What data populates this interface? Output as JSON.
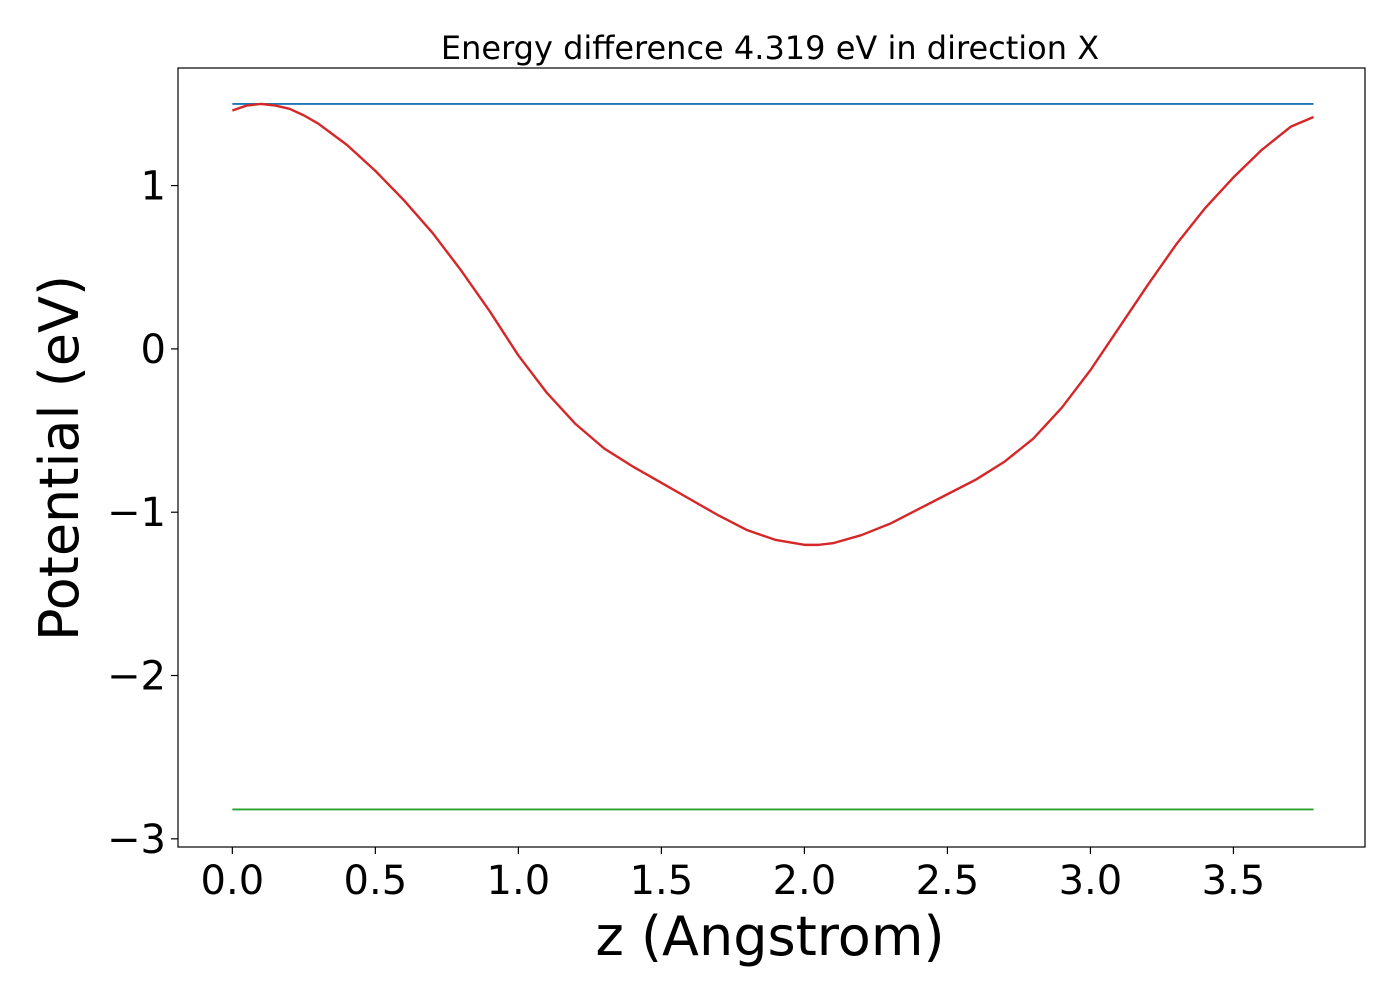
{
  "chart_data": {
    "type": "line",
    "title": "Energy difference 4.319 eV in direction X",
    "xlabel": "z (Angstrom)",
    "ylabel": "Potential (eV)",
    "xlim": [
      -0.19,
      3.96
    ],
    "ylim": [
      -3.05,
      1.72
    ],
    "xticks": [
      0.0,
      0.5,
      1.0,
      1.5,
      2.0,
      2.5,
      3.0,
      3.5
    ],
    "xtick_labels": [
      "0.0",
      "0.5",
      "1.0",
      "1.5",
      "2.0",
      "2.5",
      "3.0",
      "3.5"
    ],
    "yticks": [
      -3,
      -2,
      -1,
      0,
      1
    ],
    "ytick_labels": [
      "−3",
      "−2",
      "−1",
      "0",
      "1"
    ],
    "grid": false,
    "series": [
      {
        "color": "#1f77b4",
        "x": [
          0.0,
          3.78
        ],
        "y": [
          1.5,
          1.5
        ]
      },
      {
        "color": "#d62728",
        "x": [
          0.0,
          0.05,
          0.1,
          0.15,
          0.2,
          0.25,
          0.3,
          0.4,
          0.5,
          0.6,
          0.7,
          0.8,
          0.9,
          1.0,
          1.1,
          1.2,
          1.3,
          1.4,
          1.5,
          1.6,
          1.7,
          1.8,
          1.9,
          2.0,
          2.05,
          2.1,
          2.2,
          2.3,
          2.4,
          2.5,
          2.6,
          2.7,
          2.8,
          2.9,
          3.0,
          3.1,
          3.2,
          3.3,
          3.4,
          3.5,
          3.6,
          3.7,
          3.78
        ],
        "y": [
          1.46,
          1.49,
          1.5,
          1.49,
          1.47,
          1.43,
          1.38,
          1.25,
          1.09,
          0.91,
          0.71,
          0.48,
          0.23,
          -0.04,
          -0.27,
          -0.46,
          -0.61,
          -0.72,
          -0.82,
          -0.92,
          -1.02,
          -1.11,
          -1.17,
          -1.2,
          -1.2,
          -1.19,
          -1.14,
          -1.07,
          -0.98,
          -0.89,
          -0.8,
          -0.69,
          -0.55,
          -0.36,
          -0.13,
          0.13,
          0.39,
          0.64,
          0.86,
          1.05,
          1.22,
          1.36,
          1.42
        ]
      },
      {
        "color": "#2ca02c",
        "x": [
          0.0,
          3.78
        ],
        "y": [
          -2.82,
          -2.82
        ]
      }
    ]
  }
}
